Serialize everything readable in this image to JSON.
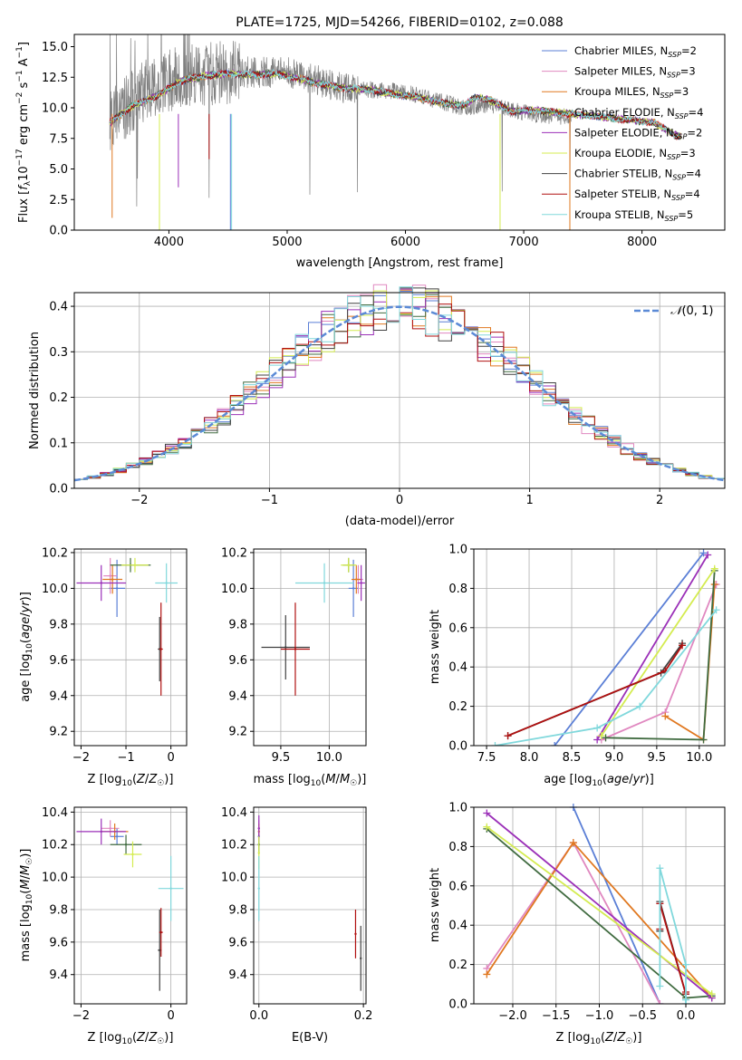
{
  "chart_data": [
    {
      "id": "spectrum",
      "type": "line",
      "title": "PLATE=1725, MJD=54266, FIBERID=0102, z=0.088",
      "xlabel": "wavelength [Angstrom, rest frame]",
      "ylabel": "Flux [f_λ 10^-17 erg cm^-2 s^-1 A^-1]",
      "xlim": [
        3200,
        8700
      ],
      "ylim": [
        0,
        16
      ],
      "xticks": [
        4000,
        5000,
        6000,
        7000,
        8000
      ],
      "yticks": [
        0.0,
        2.5,
        5.0,
        7.5,
        10.0,
        12.5,
        15.0
      ],
      "grid": false,
      "legend_position": "top-right",
      "observed_series": {
        "name": "",
        "color": "#808080",
        "x_range": [
          3500,
          7400
        ],
        "anchors_x": [
          3500,
          3800,
          4100,
          4500,
          5000,
          5500,
          6000,
          6500,
          6700,
          7000,
          7400
        ],
        "anchors_y": [
          8.8,
          11.5,
          12.6,
          12.9,
          12.9,
          11.6,
          11.3,
          10.0,
          10.3,
          9.6,
          9.2
        ]
      },
      "model_series": [
        {
          "name": "Chabrier MILES, N_SSP=2",
          "color": "#5b7fd6"
        },
        {
          "name": "Salpeter MILES, N_SSP=3",
          "color": "#e088c0"
        },
        {
          "name": "Kroupa MILES, N_SSP=3",
          "color": "#e07820"
        },
        {
          "name": "Chabrier ELODIE, N_SSP=4",
          "color": "#406b40"
        },
        {
          "name": "Salpeter ELODIE, N_SSP=2",
          "color": "#9b30b8"
        },
        {
          "name": "Kroupa ELODIE, N_SSP=3",
          "color": "#d4ec50"
        },
        {
          "name": "Chabrier STELIB, N_SSP=4",
          "color": "#404040"
        },
        {
          "name": "Salpeter STELIB, N_SSP=4",
          "color": "#b01010"
        },
        {
          "name": "Kroupa STELIB, N_SSP=5",
          "color": "#80d8dc"
        }
      ],
      "model_curve": {
        "x": [
          3500,
          3700,
          3900,
          4100,
          4300,
          4500,
          4700,
          4900,
          5100,
          5300,
          5500,
          5700,
          5900,
          6100,
          6300,
          6500,
          6600,
          6700,
          6900,
          7100,
          7300,
          7500,
          7700,
          7900,
          8100,
          8300
        ],
        "y": [
          8.8,
          10.2,
          11.0,
          12.2,
          12.6,
          12.8,
          12.7,
          12.8,
          12.4,
          11.9,
          11.6,
          11.5,
          11.1,
          10.9,
          10.4,
          10.2,
          10.9,
          10.7,
          9.7,
          9.8,
          9.6,
          9.4,
          9.2,
          9.0,
          8.8,
          7.7
        ]
      }
    },
    {
      "id": "residuals",
      "type": "line",
      "title": "",
      "xlabel": "(data-model)/error",
      "ylabel": "Normed distribution",
      "xlim": [
        -2.5,
        2.5
      ],
      "ylim": [
        0,
        0.43
      ],
      "xticks": [
        -2,
        -1,
        0,
        1,
        2
      ],
      "yticks": [
        0.0,
        0.1,
        0.2,
        0.3,
        0.4
      ],
      "grid": true,
      "legend_position": "top-right",
      "reference_curve": {
        "name": "𝒩(0,1)",
        "color": "#5b8ad6",
        "style": "dashed",
        "mean": 0,
        "sigma": 1
      },
      "bins": {
        "start": -2.5,
        "width": 0.1,
        "count": 50
      }
    },
    {
      "id": "age-vs-Z",
      "type": "scatter",
      "xlabel": "Z [log10(Z/Z☉)]",
      "ylabel": "age [log10(age/yr)]",
      "xlim": [
        -2.15,
        0.35
      ],
      "ylim": [
        9.12,
        10.22
      ],
      "xticks": [
        -2,
        -1,
        0
      ],
      "yticks": [
        9.2,
        9.4,
        9.6,
        9.8,
        10.0,
        10.2
      ],
      "grid": true,
      "points": [
        {
          "model": "Chabrier MILES",
          "x": -1.2,
          "y": 10.0,
          "xerr": 0.18,
          "yerr": 0.16
        },
        {
          "model": "Salpeter MILES",
          "x": -1.35,
          "y": 10.07,
          "xerr": 0.15,
          "yerr": 0.1
        },
        {
          "model": "Kroupa MILES",
          "x": -1.3,
          "y": 10.05,
          "xerr": 0.22,
          "yerr": 0.08
        },
        {
          "model": "Chabrier ELODIE",
          "x": -0.9,
          "y": 10.13,
          "xerr": 0.45,
          "yerr": 0.04
        },
        {
          "model": "Salpeter ELODIE",
          "x": -1.55,
          "y": 10.03,
          "xerr": 0.55,
          "yerr": 0.1
        },
        {
          "model": "Kroupa ELODIE",
          "x": -0.8,
          "y": 10.13,
          "xerr": 0.3,
          "yerr": 0.04
        },
        {
          "model": "Chabrier STELIB",
          "x": -0.25,
          "y": 9.66,
          "xerr": 0.04,
          "yerr": 0.18
        },
        {
          "model": "Salpeter STELIB",
          "x": -0.22,
          "y": 9.66,
          "xerr": 0.04,
          "yerr": 0.26
        },
        {
          "model": "Kroupa STELIB",
          "x": -0.1,
          "y": 10.03,
          "xerr": 0.25,
          "yerr": 0.11
        }
      ]
    },
    {
      "id": "age-vs-mass",
      "type": "scatter",
      "xlabel": "mass [log10(M/M☉)]",
      "ylabel": "",
      "xlim": [
        9.22,
        10.38
      ],
      "ylim": [
        9.12,
        10.22
      ],
      "xticks": [
        9.5,
        10.0
      ],
      "yticks": [
        9.2,
        9.4,
        9.6,
        9.8,
        10.0,
        10.2
      ],
      "grid": true,
      "points": [
        {
          "model": "Chabrier MILES",
          "x": 10.25,
          "y": 10.0,
          "xerr": 0.05,
          "yerr": 0.16
        },
        {
          "model": "Salpeter MILES",
          "x": 10.3,
          "y": 10.05,
          "xerr": 0.05,
          "yerr": 0.08
        },
        {
          "model": "Kroupa MILES",
          "x": 10.28,
          "y": 10.05,
          "xerr": 0.05,
          "yerr": 0.08
        },
        {
          "model": "Chabrier ELODIE",
          "x": 10.2,
          "y": 10.13,
          "xerr": 0.06,
          "yerr": 0.04
        },
        {
          "model": "Salpeter ELODIE",
          "x": 10.33,
          "y": 10.03,
          "xerr": 0.04,
          "yerr": 0.1
        },
        {
          "model": "Kroupa ELODIE",
          "x": 10.2,
          "y": 10.13,
          "xerr": 0.08,
          "yerr": 0.04
        },
        {
          "model": "Chabrier STELIB",
          "x": 9.55,
          "y": 9.67,
          "xerr": 0.25,
          "yerr": 0.18
        },
        {
          "model": "Salpeter STELIB",
          "x": 9.65,
          "y": 9.66,
          "xerr": 0.15,
          "yerr": 0.26
        },
        {
          "model": "Kroupa STELIB",
          "x": 9.95,
          "y": 10.03,
          "xerr": 0.3,
          "yerr": 0.11
        }
      ]
    },
    {
      "id": "weight-vs-age",
      "type": "line",
      "xlabel": "age [log10(age/yr)]",
      "ylabel": "mass weight",
      "xlim": [
        7.35,
        10.3
      ],
      "ylim": [
        0,
        1
      ],
      "xticks": [
        7.5,
        8.0,
        8.5,
        9.0,
        9.5,
        10.0
      ],
      "yticks": [
        0.0,
        0.2,
        0.4,
        0.6,
        0.8,
        1.0
      ],
      "grid": true,
      "series": [
        {
          "name": "Chabrier MILES",
          "x": [
            8.3,
            10.05
          ],
          "y": [
            0.0,
            0.98
          ]
        },
        {
          "name": "Salpeter MILES",
          "x": [
            8.85,
            9.6,
            10.2
          ],
          "y": [
            0.03,
            0.17,
            0.82
          ]
        },
        {
          "name": "Kroupa MILES",
          "x": [
            9.6,
            10.05,
            10.18
          ],
          "y": [
            0.15,
            0.03,
            0.82
          ]
        },
        {
          "name": "Chabrier ELODIE",
          "x": [
            8.9,
            10.05,
            10.18
          ],
          "y": [
            0.04,
            0.03,
            0.89
          ]
        },
        {
          "name": "Salpeter ELODIE",
          "x": [
            8.8,
            10.1
          ],
          "y": [
            0.03,
            0.97
          ]
        },
        {
          "name": "Kroupa ELODIE",
          "x": [
            8.85,
            10.18
          ],
          "y": [
            0.05,
            0.9
          ]
        },
        {
          "name": "Chabrier STELIB",
          "x": [
            7.75,
            9.55,
            9.8
          ],
          "y": [
            0.05,
            0.37,
            0.52
          ]
        },
        {
          "name": "Salpeter STELIB",
          "x": [
            7.75,
            9.6,
            9.8
          ],
          "y": [
            0.05,
            0.38,
            0.51
          ]
        },
        {
          "name": "Kroupa STELIB",
          "x": [
            7.6,
            8.8,
            9.3,
            10.2
          ],
          "y": [
            0.0,
            0.09,
            0.2,
            0.69
          ]
        }
      ]
    },
    {
      "id": "mass-vs-Z",
      "type": "scatter",
      "xlabel": "Z [log10(Z/Z☉)]",
      "ylabel": "mass [log10(M/M☉)]",
      "xlim": [
        -2.15,
        0.35
      ],
      "ylim": [
        9.22,
        10.43
      ],
      "xticks": [
        -2,
        0
      ],
      "yticks": [
        9.4,
        9.6,
        9.8,
        10.0,
        10.2,
        10.4
      ],
      "grid": true,
      "points": [
        {
          "model": "Chabrier MILES",
          "x": -1.2,
          "y": 10.25,
          "xerr": 0.15,
          "yerr": 0.05
        },
        {
          "model": "Salpeter MILES",
          "x": -1.35,
          "y": 10.3,
          "xerr": 0.2,
          "yerr": 0.05
        },
        {
          "model": "Kroupa MILES",
          "x": -1.25,
          "y": 10.28,
          "xerr": 0.3,
          "yerr": 0.05
        },
        {
          "model": "Chabrier ELODIE",
          "x": -1.0,
          "y": 10.2,
          "xerr": 0.35,
          "yerr": 0.06
        },
        {
          "model": "Salpeter ELODIE",
          "x": -1.55,
          "y": 10.28,
          "xerr": 0.55,
          "yerr": 0.08
        },
        {
          "model": "Kroupa ELODIE",
          "x": -0.85,
          "y": 10.14,
          "xerr": 0.2,
          "yerr": 0.08
        },
        {
          "model": "Chabrier STELIB",
          "x": -0.25,
          "y": 9.55,
          "xerr": 0.04,
          "yerr": 0.25
        },
        {
          "model": "Salpeter STELIB",
          "x": -0.22,
          "y": 9.66,
          "xerr": 0.04,
          "yerr": 0.15
        },
        {
          "model": "Kroupa STELIB",
          "x": 0.0,
          "y": 9.93,
          "xerr": 0.28,
          "yerr": 0.2
        }
      ]
    },
    {
      "id": "mass-vs-EBV",
      "type": "scatter",
      "xlabel": "E(B-V)",
      "ylabel": "",
      "xlim": [
        -0.01,
        0.205
      ],
      "ylim": [
        9.22,
        10.43
      ],
      "xticks": [
        0.0,
        0.2
      ],
      "yticks": [
        9.4,
        9.6,
        9.8,
        10.0,
        10.2,
        10.4
      ],
      "grid": true,
      "points": [
        {
          "model": "Chabrier MILES",
          "x": 0.0,
          "y": 10.25,
          "yerr": 0.05
        },
        {
          "model": "Salpeter MILES",
          "x": 0.0,
          "y": 10.3,
          "yerr": 0.05
        },
        {
          "model": "Kroupa MILES",
          "x": 0.0,
          "y": 10.28,
          "yerr": 0.05
        },
        {
          "model": "Chabrier ELODIE",
          "x": 0.0,
          "y": 10.2,
          "yerr": 0.06
        },
        {
          "model": "Salpeter ELODIE",
          "x": 0.0,
          "y": 10.3,
          "yerr": 0.08
        },
        {
          "model": "Kroupa ELODIE",
          "x": 0.0,
          "y": 10.15,
          "yerr": 0.1
        },
        {
          "model": "Chabrier STELIB",
          "x": 0.195,
          "y": 9.5,
          "yerr": 0.2
        },
        {
          "model": "Salpeter STELIB",
          "x": 0.185,
          "y": 9.65,
          "yerr": 0.15
        },
        {
          "model": "Kroupa STELIB",
          "x": 0.0,
          "y": 9.93,
          "yerr": 0.2
        }
      ]
    },
    {
      "id": "weight-vs-Z",
      "type": "line",
      "xlabel": "Z [log10(Z/Z☉)]",
      "ylabel": "mass weight",
      "xlim": [
        -2.45,
        0.45
      ],
      "ylim": [
        0,
        1
      ],
      "xticks": [
        -2.0,
        -1.5,
        -1.0,
        -0.5,
        0.0
      ],
      "yticks": [
        0.0,
        0.2,
        0.4,
        0.6,
        0.8,
        1.0
      ],
      "grid": true,
      "series": [
        {
          "name": "Chabrier MILES",
          "x": [
            -1.3,
            -0.3
          ],
          "y": [
            1.0,
            0.0
          ]
        },
        {
          "name": "Salpeter MILES",
          "x": [
            -2.3,
            -1.3,
            -0.3
          ],
          "y": [
            0.18,
            0.82,
            0.0
          ]
        },
        {
          "name": "Kroupa MILES",
          "x": [
            -2.3,
            -1.3,
            0.3
          ],
          "y": [
            0.15,
            0.82,
            0.03
          ]
        },
        {
          "name": "Chabrier ELODIE",
          "x": [
            -2.3,
            0.0,
            0.3
          ],
          "y": [
            0.89,
            0.03,
            0.04
          ]
        },
        {
          "name": "Salpeter ELODIE",
          "x": [
            -2.3,
            0.3
          ],
          "y": [
            0.97,
            0.03
          ]
        },
        {
          "name": "Kroupa ELODIE",
          "x": [
            -2.3,
            0.3
          ],
          "y": [
            0.9,
            0.05
          ]
        },
        {
          "name": "Chabrier STELIB",
          "x": [
            -0.3,
            -0.3,
            0.0,
            0.0
          ],
          "y": [
            0.37,
            0.52,
            0.05,
            0.05
          ]
        },
        {
          "name": "Salpeter STELIB",
          "x": [
            -0.3,
            -0.3,
            0.0,
            0.0
          ],
          "y": [
            0.38,
            0.51,
            0.05,
            0.06
          ]
        },
        {
          "name": "Kroupa STELIB",
          "x": [
            -0.3,
            -0.3,
            0.0,
            0.0,
            0.0
          ],
          "y": [
            0.09,
            0.69,
            0.2,
            0.02,
            0.0
          ]
        }
      ]
    }
  ]
}
